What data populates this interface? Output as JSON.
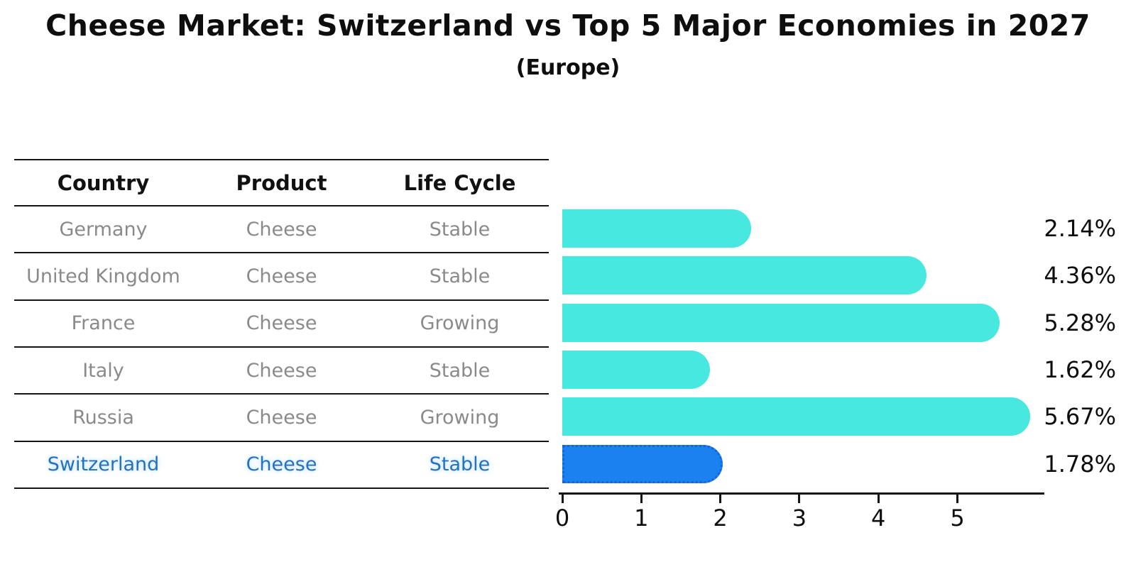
{
  "title": "Cheese Market: Switzerland vs Top 5 Major Economies in 2027",
  "subtitle": "(Europe)",
  "table": {
    "headers": [
      "Country",
      "Product",
      "Life Cycle"
    ],
    "rows": [
      {
        "country": "Germany",
        "product": "Cheese",
        "life_cycle": "Stable",
        "highlight": false
      },
      {
        "country": "United Kingdom",
        "product": "Cheese",
        "life_cycle": "Stable",
        "highlight": false
      },
      {
        "country": "France",
        "product": "Cheese",
        "life_cycle": "Growing",
        "highlight": false
      },
      {
        "country": "Italy",
        "product": "Cheese",
        "life_cycle": "Stable",
        "highlight": false
      },
      {
        "country": "Russia",
        "product": "Cheese",
        "life_cycle": "Growing",
        "highlight": false
      },
      {
        "country": "Switzerland",
        "product": "Cheese",
        "life_cycle": "Stable",
        "highlight": true
      }
    ]
  },
  "chart_data": {
    "type": "bar",
    "orientation": "horizontal",
    "title": "Cheese Market: Switzerland vs Top 5 Major Economies in 2027",
    "subtitle": "(Europe)",
    "categories": [
      "Germany",
      "United Kingdom",
      "France",
      "Italy",
      "Russia",
      "Switzerland"
    ],
    "values": [
      2.14,
      4.36,
      5.28,
      1.62,
      5.67,
      1.78
    ],
    "value_labels": [
      "2.14%",
      "4.36%",
      "5.28%",
      "1.62%",
      "5.67%",
      "1.78%"
    ],
    "xlabel": "",
    "ylabel": "",
    "x_ticks": [
      0,
      1,
      2,
      3,
      4,
      5
    ],
    "xlim": [
      0,
      6.1
    ],
    "grid": false,
    "legend": "none",
    "bar_color": "#47e8e0",
    "highlight_index": 5,
    "highlight_color": "#1c81f0",
    "highlight_border_color": "#1064dd",
    "highlight_style": "dotted-outline"
  }
}
